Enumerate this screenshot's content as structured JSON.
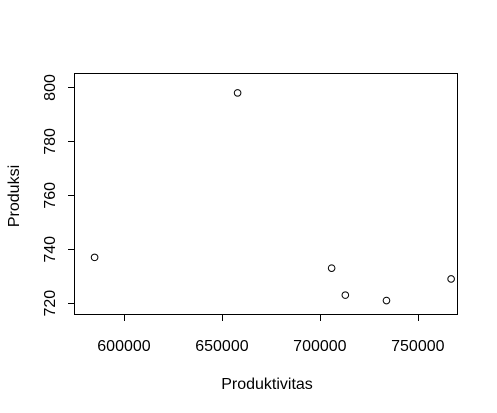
{
  "chart_data": {
    "type": "scatter",
    "title": "",
    "xlabel": "Produktivitas",
    "ylabel": "Produksi",
    "xlim": [
      575000,
      770000
    ],
    "ylim": [
      716,
      805
    ],
    "x_ticks": [
      600000,
      650000,
      700000,
      750000
    ],
    "y_ticks": [
      720,
      740,
      760,
      780,
      800
    ],
    "x_tick_labels": [
      "600000",
      "650000",
      "700000",
      "750000"
    ],
    "y_tick_labels": [
      "720",
      "740",
      "760",
      "780",
      "800"
    ],
    "points": [
      {
        "x": 585000,
        "y": 737
      },
      {
        "x": 658000,
        "y": 798
      },
      {
        "x": 706000,
        "y": 733
      },
      {
        "x": 713000,
        "y": 723
      },
      {
        "x": 734000,
        "y": 721
      },
      {
        "x": 767000,
        "y": 729
      }
    ],
    "marker": "open-circle",
    "grid": false,
    "legend": "none",
    "colors": {
      "foreground": "#000000",
      "background": "#ffffff"
    }
  }
}
